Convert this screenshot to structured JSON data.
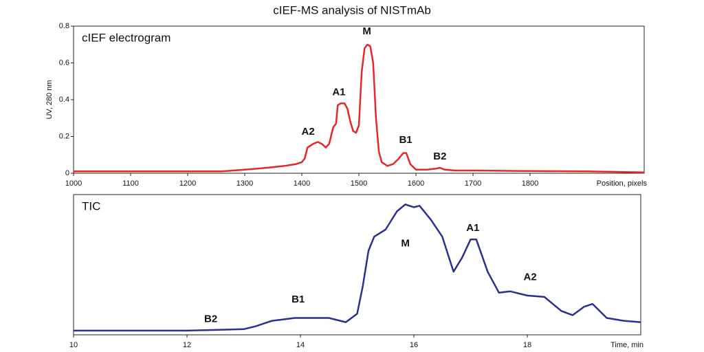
{
  "title": "cIEF-MS analysis of NISTmAb",
  "chart_data": [
    {
      "type": "line",
      "title": "cIEF electrogram",
      "ylabel": "UV, 280 nm",
      "xlabel": "Position, pixels",
      "color": "#e8262a",
      "x": [
        1000,
        1100,
        1200,
        1260,
        1300,
        1340,
        1370,
        1390,
        1400,
        1405,
        1410,
        1415,
        1420,
        1428,
        1435,
        1442,
        1448,
        1455,
        1460,
        1463,
        1468,
        1475,
        1480,
        1485,
        1490,
        1495,
        1500,
        1505,
        1510,
        1515,
        1520,
        1525,
        1530,
        1535,
        1540,
        1550,
        1560,
        1570,
        1578,
        1583,
        1590,
        1600,
        1620,
        1635,
        1642,
        1650,
        1670,
        1700,
        1800,
        1900,
        2000
      ],
      "values": [
        0.01,
        0.01,
        0.01,
        0.01,
        0.02,
        0.03,
        0.04,
        0.05,
        0.06,
        0.08,
        0.14,
        0.15,
        0.16,
        0.17,
        0.16,
        0.14,
        0.16,
        0.25,
        0.27,
        0.37,
        0.38,
        0.38,
        0.35,
        0.28,
        0.23,
        0.22,
        0.26,
        0.55,
        0.68,
        0.7,
        0.69,
        0.6,
        0.3,
        0.12,
        0.06,
        0.04,
        0.05,
        0.08,
        0.11,
        0.11,
        0.05,
        0.02,
        0.02,
        0.025,
        0.03,
        0.02,
        0.015,
        0.015,
        0.012,
        0.01,
        0.005
      ],
      "xlim": [
        1000,
        2000
      ],
      "xticks": [
        1000,
        1100,
        1200,
        1300,
        1400,
        1500,
        1600,
        1700,
        1800
      ],
      "ylim": [
        0,
        0.8
      ],
      "yticks": [
        0,
        0.2,
        0.4,
        0.6,
        0.8
      ],
      "annotations": [
        {
          "text": "A2",
          "x": 1411,
          "y": 0.225
        },
        {
          "text": "A1",
          "x": 1465,
          "y": 0.44
        },
        {
          "text": "M",
          "x": 1514,
          "y": 0.77
        },
        {
          "text": "B1",
          "x": 1582,
          "y": 0.18
        },
        {
          "text": "B2",
          "x": 1642,
          "y": 0.09
        }
      ]
    },
    {
      "type": "line",
      "title": "TIC",
      "xlabel": "Time, min",
      "color": "#2b2f8f",
      "x": [
        10,
        11,
        12,
        12.5,
        13,
        13.2,
        13.5,
        13.9,
        14.2,
        14.5,
        14.8,
        15,
        15.1,
        15.2,
        15.3,
        15.5,
        15.7,
        15.85,
        16,
        16.1,
        16.3,
        16.5,
        16.7,
        16.85,
        17,
        17.1,
        17.3,
        17.5,
        17.7,
        18,
        18.3,
        18.6,
        18.8,
        19,
        19.15,
        19.4,
        19.7,
        20
      ],
      "values": [
        0.03,
        0.03,
        0.03,
        0.035,
        0.04,
        0.06,
        0.1,
        0.12,
        0.12,
        0.12,
        0.09,
        0.15,
        0.35,
        0.6,
        0.7,
        0.75,
        0.88,
        0.93,
        0.91,
        0.92,
        0.82,
        0.7,
        0.45,
        0.55,
        0.68,
        0.68,
        0.45,
        0.3,
        0.31,
        0.28,
        0.27,
        0.17,
        0.14,
        0.2,
        0.22,
        0.12,
        0.1,
        0.09
      ],
      "xlim": [
        10,
        20
      ],
      "xticks": [
        10,
        12,
        14,
        16,
        18
      ],
      "ylim": [
        0,
        1
      ],
      "annotations": [
        {
          "text": "B2",
          "x": 12.42,
          "y": 0.11
        },
        {
          "text": "B1",
          "x": 13.96,
          "y": 0.25
        },
        {
          "text": "M",
          "x": 15.85,
          "y": 0.65
        },
        {
          "text": "A1",
          "x": 17.04,
          "y": 0.76
        },
        {
          "text": "A2",
          "x": 18.05,
          "y": 0.41
        }
      ]
    }
  ]
}
